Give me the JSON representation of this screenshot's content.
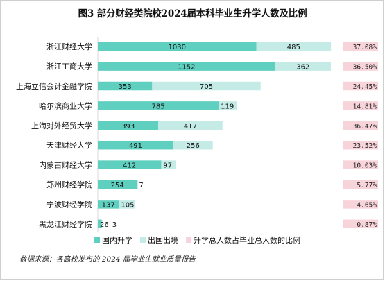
{
  "title": "图3  部分财经类院校2024届本科毕业生升学人数及比例",
  "source": "数据来源：各高校发布的 2024 届毕业生就业质量报告",
  "colors": {
    "domestic": "#5fcfc0",
    "abroad": "#c4ebe5",
    "ratio": "#f7d3da",
    "grid": "#d9d9d9"
  },
  "chart_data": {
    "type": "bar",
    "orientation": "horizontal",
    "stacked": true,
    "categories": [
      "浙江财经大学",
      "浙江工商大学",
      "上海立信会计金融学院",
      "哈尔滨商业大学",
      "上海对外经贸大学",
      "天津财经大学",
      "内蒙古财经大学",
      "郑州财经学院",
      "宁波财经学院",
      "黑龙江财经学院"
    ],
    "series": [
      {
        "name": "国内升学",
        "values": [
          1030,
          1152,
          353,
          785,
          393,
          491,
          412,
          254,
          137,
          26
        ]
      },
      {
        "name": "出国出境",
        "values": [
          485,
          362,
          705,
          119,
          417,
          256,
          97,
          7,
          105,
          3
        ]
      }
    ],
    "ratio": {
      "name": "升学总人数占毕业总人数的比例",
      "values": [
        37.08,
        36.5,
        24.45,
        14.81,
        36.47,
        23.52,
        10.03,
        5.77,
        4.65,
        0.87
      ],
      "labels": [
        "37.08%",
        "36.50%",
        "24.45%",
        "14.81%",
        "36.47%",
        "23.52%",
        "10.03%",
        "5.77%",
        "4.65%",
        "0.87%"
      ]
    },
    "xlim": [
      0,
      1600
    ],
    "legend_position": "bottom",
    "grid": false
  }
}
